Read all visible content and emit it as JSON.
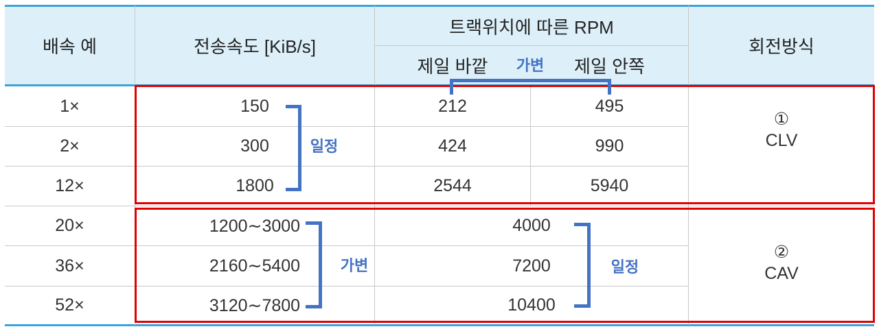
{
  "headers": {
    "speed": "배속 예",
    "rate": "전송속도 [KiB/s]",
    "rpm_group": "트랙위치에 따른 RPM",
    "rpm_outer": "제일 바깥",
    "rpm_inner": "제일 안쪽",
    "mode": "회전방식"
  },
  "rows": [
    {
      "speed": "1×",
      "rate": "150",
      "outer": "212",
      "inner": "495"
    },
    {
      "speed": "2×",
      "rate": "300",
      "outer": "424",
      "inner": "990"
    },
    {
      "speed": "12×",
      "rate": "1800",
      "outer": "2544",
      "inner": "5940"
    },
    {
      "speed": "20×",
      "rate": "1200∼3000",
      "rpm": "4000"
    },
    {
      "speed": "36×",
      "rate": "2160∼5400",
      "rpm": "7200"
    },
    {
      "speed": "52×",
      "rate": "3120∼7800",
      "rpm": "10400"
    }
  ],
  "modes": {
    "clv_num": "①",
    "clv": "CLV",
    "cav_num": "②",
    "cav": "CAV"
  },
  "annotations": {
    "rpm_variable": "가변",
    "clv_rate_constant": "일정",
    "cav_rate_variable": "가변",
    "cav_rpm_constant": "일정"
  },
  "colors": {
    "header_bg": "#ddf0f9",
    "border_accent": "#3aa3d8",
    "highlight_box": "#e00000",
    "annotation": "#4472c4"
  }
}
